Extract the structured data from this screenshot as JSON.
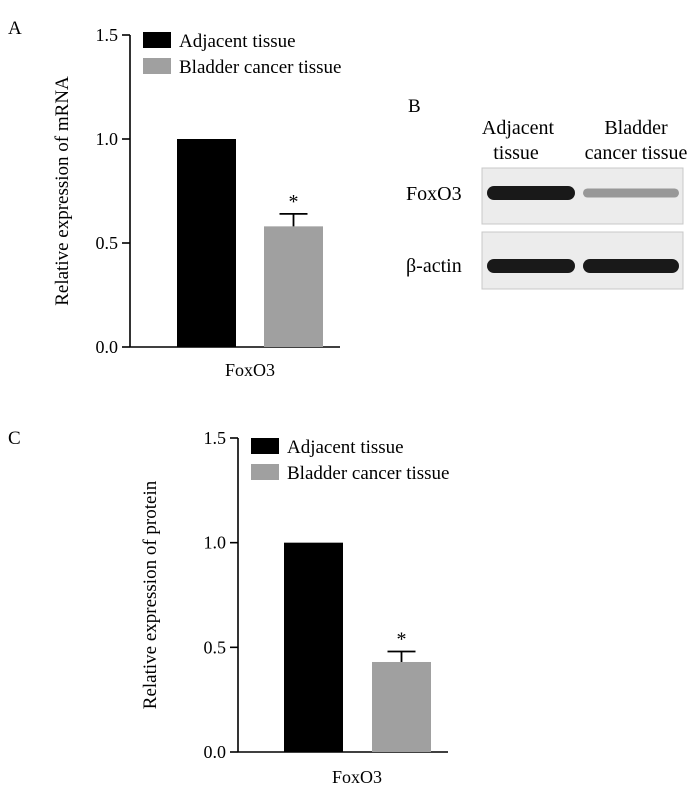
{
  "panels": {
    "a": "A",
    "b": "B",
    "c": "C"
  },
  "western_blot": {
    "lane_labels": [
      [
        "Adjacent",
        "tissue"
      ],
      [
        "Bladder",
        "cancer tissue"
      ]
    ],
    "rows": [
      {
        "label": "FoxO3",
        "band_intensity": [
          1.0,
          0.45
        ]
      },
      {
        "label": "β-actin",
        "band_intensity": [
          1.0,
          1.0
        ]
      }
    ]
  },
  "chart_data": [
    {
      "type": "bar",
      "panel": "A",
      "categories": [
        "FoxO3"
      ],
      "series": [
        {
          "name": "Adjacent tissue",
          "values": [
            1.0
          ],
          "error": [
            0
          ],
          "color": "#000000"
        },
        {
          "name": "Bladder cancer tissue",
          "values": [
            0.58
          ],
          "error": [
            0.06
          ],
          "color": "#a0a0a0"
        }
      ],
      "annotations": [
        "",
        "*"
      ],
      "xlabel": "FoxO3",
      "ylabel": "Relative expression of mRNA",
      "ylim": [
        0,
        1.5
      ],
      "yticks": [
        "0.0",
        "0.5",
        "1.0",
        "1.5"
      ],
      "legend": "top-left"
    },
    {
      "type": "bar",
      "panel": "C",
      "categories": [
        "FoxO3"
      ],
      "series": [
        {
          "name": "Adjacent tissue",
          "values": [
            1.0
          ],
          "error": [
            0
          ],
          "color": "#000000"
        },
        {
          "name": "Bladder cancer tissue",
          "values": [
            0.43
          ],
          "error": [
            0.05
          ],
          "color": "#a0a0a0"
        }
      ],
      "annotations": [
        "",
        "*"
      ],
      "xlabel": "FoxO3",
      "ylabel": "Relative expression of protein",
      "ylim": [
        0,
        1.5
      ],
      "yticks": [
        "0.0",
        "0.5",
        "1.0",
        "1.5"
      ],
      "legend": "top-left"
    }
  ]
}
